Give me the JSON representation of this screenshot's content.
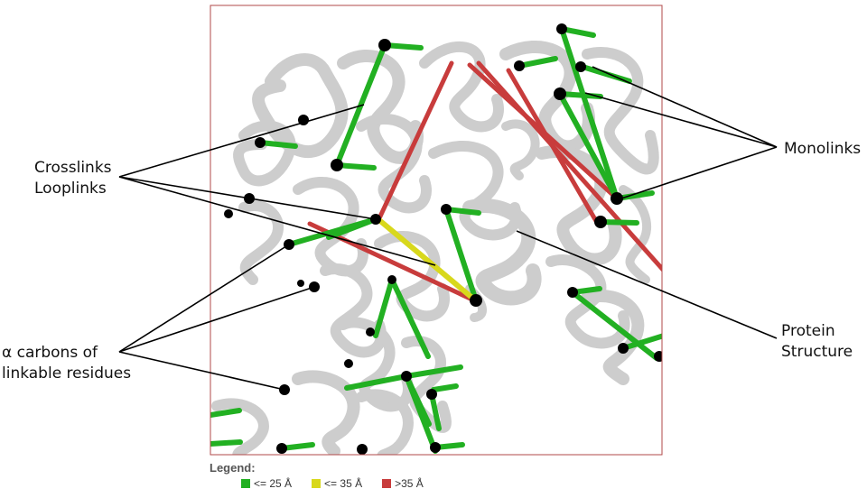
{
  "labels": {
    "crosslinks": "Crosslinks",
    "looplinks": "Looplinks",
    "alpha_carbons_1": "α carbons of",
    "alpha_carbons_2": "linkable residues",
    "monolinks": "Monolinks",
    "protein_1": "Protein",
    "protein_2": "Structure"
  },
  "legend": {
    "title": "Legend:",
    "items": [
      {
        "label": "<= 25 Å",
        "color": "#22b022"
      },
      {
        "label": "<= 35 Å",
        "color": "#d8d81c"
      },
      {
        "label": ">35 Å",
        "color": "#c83c3c"
      }
    ]
  },
  "colors": {
    "green": "#22b022",
    "yellow": "#d8d81c",
    "red": "#c83c3c",
    "frame": "#b04848",
    "protein": "#cfcfcf",
    "atom": "#000000"
  }
}
